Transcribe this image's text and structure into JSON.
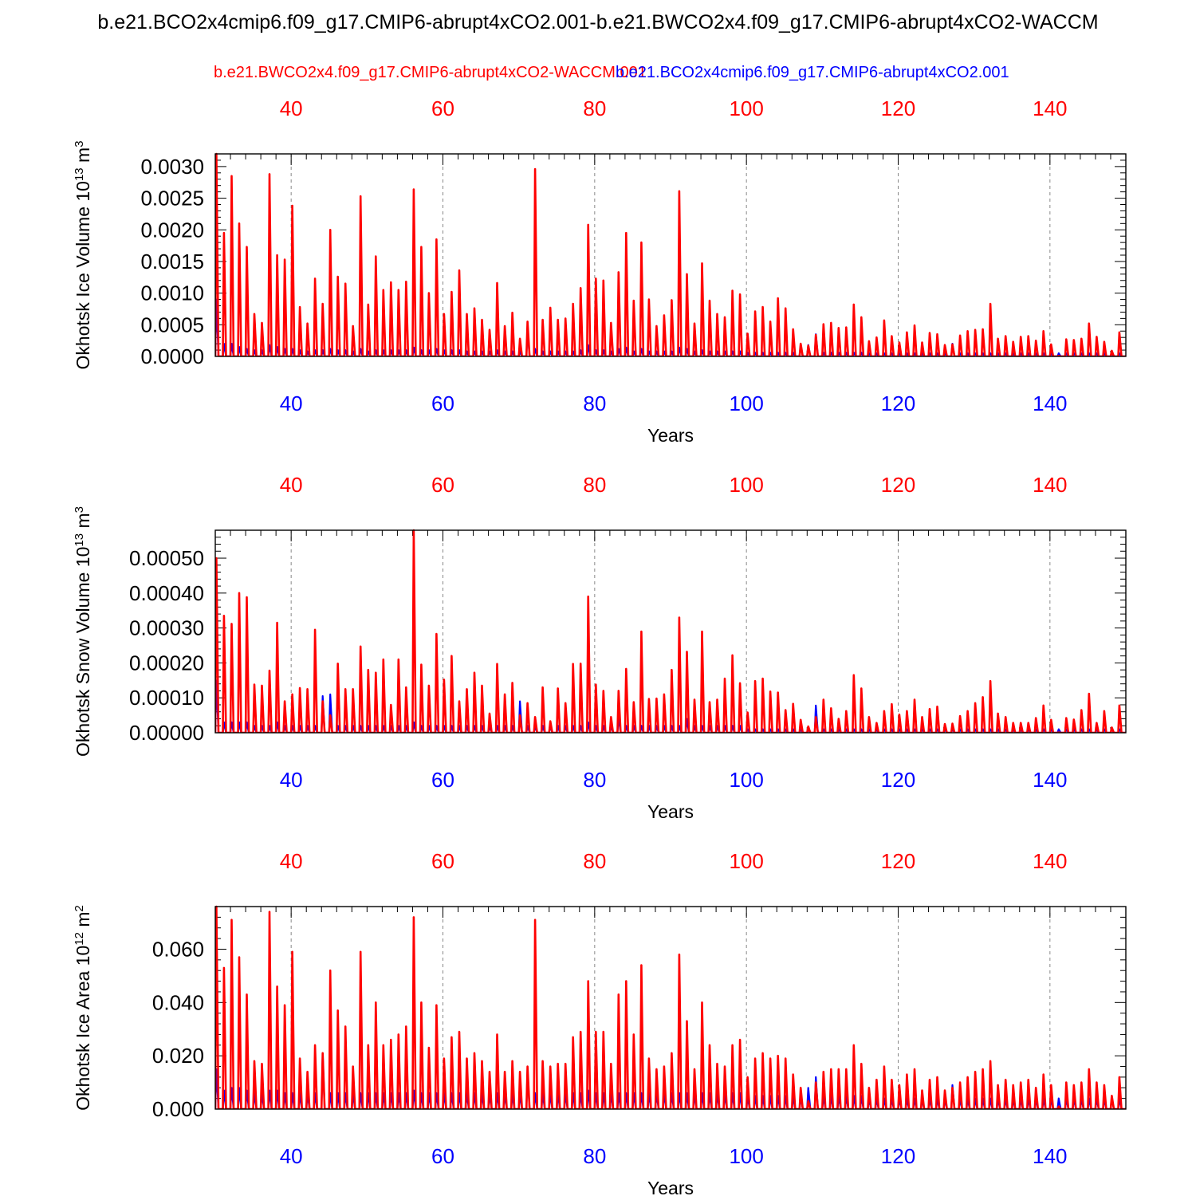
{
  "title": "b.e21.BCO2x4cmip6.f09_g17.CMIP6-abrupt4xCO2.001-b.e21.BWCO2x4.f09_g17.CMIP6-abrupt4xCO2-WACCM",
  "legend": {
    "red_label": "b.e21.BWCO2x4.f09_g17.CMIP6-abrupt4xCO2-WACCM.001",
    "blue_label": "b.e21.BCO2x4cmip6.f09_g17.CMIP6-abrupt4xCO2.001"
  },
  "colors": {
    "series_red": "#ff0000",
    "series_blue": "#0000ff",
    "axis": "#000000",
    "grid": "#888888"
  },
  "chart_data": [
    {
      "type": "line",
      "ylabel": "Okhotsk Ice Volume 10",
      "ylabel_exp": "13",
      "ylabel_unit": " m",
      "ylabel_unit_exp": "3",
      "xlabel": "Years",
      "xlim": [
        30,
        150
      ],
      "ylim": [
        0,
        0.0032
      ],
      "yticks": [
        0,
        0.0005,
        0.001,
        0.0015,
        0.002,
        0.0025,
        0.003
      ],
      "ytick_labels": [
        "0.0000",
        "0.0005",
        "0.0010",
        "0.0015",
        "0.0020",
        "0.0025",
        "0.0030"
      ],
      "xticks": [
        40,
        60,
        80,
        100,
        120,
        140
      ],
      "xtick_labels": [
        "40",
        "60",
        "80",
        "100",
        "120",
        "140"
      ],
      "series": [
        {
          "name": "b.e21.BWCO2x4.f09_g17.CMIP6-abrupt4xCO2-WACCM.001",
          "color": "#ff0000",
          "annual_peaks": [
            0.0032,
            0.00195,
            0.00285,
            0.0021,
            0.00173,
            0.00067,
            0.00053,
            0.00288,
            0.0016,
            0.00153,
            0.00238,
            0.00078,
            0.00052,
            0.00123,
            0.00083,
            0.002,
            0.00126,
            0.00115,
            0.00048,
            0.00253,
            0.00082,
            0.00158,
            0.00105,
            0.00117,
            0.00105,
            0.00118,
            0.00264,
            0.00173,
            0.001,
            0.00185,
            0.00067,
            0.00102,
            0.00136,
            0.00067,
            0.00076,
            0.00058,
            0.00042,
            0.00116,
            0.00048,
            0.00069,
            0.00028,
            0.00055,
            0.00296,
            0.00058,
            0.00077,
            0.00058,
            0.0006,
            0.00083,
            0.00108,
            0.00208,
            0.00123,
            0.0012,
            0.00053,
            0.00133,
            0.00195,
            0.00088,
            0.0018,
            0.0009,
            0.00048,
            0.00065,
            0.00089,
            0.00261,
            0.0013,
            0.00052,
            0.00147,
            0.00088,
            0.00067,
            0.00062,
            0.00104,
            0.00098,
            0.00036,
            0.00071,
            0.00078,
            0.00055,
            0.00092,
            0.00076,
            0.00043,
            0.0002,
            0.00017,
            0.00034,
            0.00051,
            0.00053,
            0.00045,
            0.00046,
            0.00082,
            0.00062,
            0.00024,
            0.0003,
            0.00057,
            0.00032,
            0.00022,
            0.00038,
            0.00049,
            0.00022,
            0.00037,
            0.00035,
            0.00018,
            0.00019,
            0.00033,
            0.0004,
            0.00042,
            0.00043,
            0.00083,
            0.00028,
            0.00032,
            0.00023,
            0.00031,
            0.00032,
            0.00025,
            0.0004,
            0.00019,
            1e-05,
            0.00027,
            0.00026,
            0.00028,
            0.00052,
            0.00031,
            0.00023,
            9e-05,
            0.00038
          ]
        },
        {
          "name": "b.e21.BCO2x4cmip6.f09_g17.CMIP6-abrupt4xCO2.001",
          "color": "#0000ff",
          "annual_peaks": [
            0.0009,
            0.0002,
            0.0002,
            0.00015,
            0.00012,
            0.0001,
            0.0001,
            0.00018,
            0.00015,
            0.00012,
            0.00012,
            0.0001,
            8e-05,
            0.0001,
            0.0001,
            0.00012,
            0.0001,
            0.0001,
            8e-05,
            0.00012,
            8e-05,
            0.0001,
            0.0001,
            0.0001,
            0.0001,
            0.0001,
            0.00014,
            0.0001,
            0.0001,
            0.00012,
            0.0001,
            0.0001,
            0.0001,
            8e-05,
            8e-05,
            8e-05,
            8e-05,
            0.0001,
            8e-05,
            8e-05,
            8e-05,
            0.00045,
            0.00012,
            8e-05,
            8e-05,
            8e-05,
            8e-05,
            8e-05,
            0.0001,
            0.00018,
            0.0001,
            0.0001,
            8e-05,
            0.00012,
            0.00014,
            8e-05,
            0.00012,
            8e-05,
            8e-05,
            8e-05,
            8e-05,
            0.00014,
            0.00012,
            8e-05,
            0.0001,
            8e-05,
            8e-05,
            8e-05,
            8e-05,
            8e-05,
            6e-05,
            6e-05,
            6e-05,
            6e-05,
            6e-05,
            6e-05,
            6e-05,
            0.00018,
            0.00018,
            0.00035,
            6e-05,
            6e-05,
            6e-05,
            6e-05,
            6e-05,
            6e-05,
            5e-05,
            5e-05,
            5e-05,
            5e-05,
            5e-05,
            5e-05,
            5e-05,
            5e-05,
            5e-05,
            5e-05,
            5e-05,
            0.0002,
            5e-05,
            5e-05,
            5e-05,
            5e-05,
            5e-05,
            5e-05,
            5e-05,
            5e-05,
            5e-05,
            5e-05,
            5e-05,
            5e-05,
            5e-05,
            5e-05,
            5e-05,
            5e-05,
            5e-05,
            5e-05,
            5e-05,
            5e-05,
            5e-05,
            5e-05
          ]
        }
      ]
    },
    {
      "type": "line",
      "ylabel": "Okhotsk Snow Volume 10",
      "ylabel_exp": "13",
      "ylabel_unit": " m",
      "ylabel_unit_exp": "3",
      "xlabel": "Years",
      "xlim": [
        30,
        150
      ],
      "ylim": [
        0,
        0.00058
      ],
      "yticks": [
        0,
        0.0001,
        0.0002,
        0.0003,
        0.0004,
        0.0005
      ],
      "ytick_labels": [
        "0.00000",
        "0.00010",
        "0.00020",
        "0.00030",
        "0.00040",
        "0.00050"
      ],
      "xticks": [
        40,
        60,
        80,
        100,
        120,
        140
      ],
      "xtick_labels": [
        "40",
        "60",
        "80",
        "100",
        "120",
        "140"
      ],
      "series": [
        {
          "name": "b.e21.BWCO2x4.f09_g17.CMIP6-abrupt4xCO2-WACCM.001",
          "color": "#ff0000",
          "annual_peaks": [
            0.0005,
            0.000335,
            0.000312,
            0.0004,
            0.000388,
            0.000138,
            0.000135,
            0.000178,
            0.000315,
            9e-05,
            0.00011,
            0.000128,
            0.000125,
            0.000295,
            9e-05,
            5e-05,
            0.000198,
            0.000125,
            0.000125,
            0.000247,
            0.00018,
            0.000172,
            0.00021,
            8e-05,
            0.00021,
            0.00013,
            0.00058,
            0.000195,
            0.000135,
            0.000283,
            0.000152,
            0.00022,
            9e-05,
            0.000125,
            0.000172,
            0.000135,
            5.5e-05,
            0.000197,
            0.00011,
            0.000143,
            5e-05,
            8.5e-05,
            4.5e-05,
            0.00013,
            3.3e-05,
            0.000127,
            8.5e-05,
            0.000197,
            0.000198,
            0.00039,
            0.000138,
            0.00012,
            4.5e-05,
            0.00012,
            0.000183,
            8.8e-05,
            0.00029,
            9.7e-05,
            9.8e-05,
            0.00011,
            0.00018,
            0.00033,
            0.000232,
            9.5e-05,
            0.00029,
            8.8e-05,
            9.5e-05,
            0.000155,
            0.000222,
            0.000142,
            5.8e-05,
            0.000148,
            0.000155,
            0.000118,
            0.000115,
            6.5e-05,
            8.3e-05,
            3.7e-05,
            1.8e-05,
            4.5e-05,
            9.5e-05,
            7e-05,
            4e-05,
            6.2e-05,
            0.000165,
            0.000127,
            4.5e-05,
            2.8e-05,
            6.2e-05,
            8.2e-05,
            5.2e-05,
            6.2e-05,
            9.5e-05,
            4.5e-05,
            6.8e-05,
            7.5e-05,
            2.5e-05,
            2.6e-05,
            4.8e-05,
            6.2e-05,
            8.5e-05,
            0.000102,
            0.000148,
            5.5e-05,
            4.5e-05,
            2.8e-05,
            2.8e-05,
            2.8e-05,
            4.2e-05,
            7.8e-05,
            3.7e-05,
            1e-06,
            4.2e-05,
            3.8e-05,
            6.5e-05,
            0.000112,
            2.8e-05,
            6.2e-05,
            1.5e-05,
            7.8e-05
          ]
        },
        {
          "name": "b.e21.BCO2x4cmip6.f09_g17.CMIP6-abrupt4xCO2.001",
          "color": "#0000ff",
          "annual_peaks": [
            0.00015,
            3e-05,
            3e-05,
            3e-05,
            3e-05,
            2e-05,
            2e-05,
            2e-05,
            3e-05,
            2e-05,
            2e-05,
            2e-05,
            2e-05,
            2e-05,
            0.000105,
            0.00011,
            2e-05,
            2e-05,
            2e-05,
            2e-05,
            2e-05,
            2e-05,
            2e-05,
            2e-05,
            2e-05,
            2e-05,
            3e-05,
            2e-05,
            2e-05,
            2e-05,
            2e-05,
            2e-05,
            2e-05,
            2e-05,
            2e-05,
            2e-05,
            2e-05,
            2e-05,
            2e-05,
            2e-05,
            9e-05,
            2e-05,
            2e-05,
            2e-05,
            2e-05,
            2e-05,
            2e-05,
            2e-05,
            2e-05,
            3e-05,
            2e-05,
            2e-05,
            2e-05,
            4.5e-05,
            2e-05,
            2e-05,
            2e-05,
            2e-05,
            2e-05,
            2e-05,
            2e-05,
            2e-05,
            4e-05,
            2e-05,
            2e-05,
            2e-05,
            2e-05,
            2e-05,
            2e-05,
            2e-05,
            1e-05,
            1e-05,
            1e-05,
            1e-05,
            1e-05,
            1e-05,
            1e-05,
            1e-05,
            1e-05,
            7.8e-05,
            1e-05,
            1e-05,
            1e-05,
            1e-05,
            1e-05,
            1e-05,
            1e-05,
            1e-05,
            1e-05,
            1e-05,
            1e-05,
            1e-05,
            1e-05,
            1e-05,
            1e-05,
            1e-05,
            1e-05,
            1e-05,
            1e-05,
            1e-05,
            1e-05,
            1e-05,
            1e-05,
            1e-05,
            1e-05,
            1e-05,
            1e-05,
            1e-05,
            1e-05,
            1e-05,
            1e-05,
            1e-05,
            1e-05,
            1e-05,
            1e-05,
            1e-05,
            1e-05,
            1e-05,
            1e-05,
            1e-05
          ]
        }
      ]
    },
    {
      "type": "line",
      "ylabel": "Okhotsk Ice Area 10",
      "ylabel_exp": "12",
      "ylabel_unit": " m",
      "ylabel_unit_exp": "2",
      "xlabel": "Years",
      "xlim": [
        30,
        150
      ],
      "ylim": [
        0,
        0.076
      ],
      "yticks": [
        0,
        0.02,
        0.04,
        0.06
      ],
      "ytick_labels": [
        "0.000",
        "0.020",
        "0.040",
        "0.060"
      ],
      "xticks": [
        40,
        60,
        80,
        100,
        120,
        140
      ],
      "xtick_labels": [
        "40",
        "60",
        "80",
        "100",
        "120",
        "140"
      ],
      "series": [
        {
          "name": "b.e21.BWCO2x4.f09_g17.CMIP6-abrupt4xCO2-WACCM.001",
          "color": "#ff0000",
          "annual_peaks": [
            0.076,
            0.053,
            0.071,
            0.057,
            0.043,
            0.018,
            0.017,
            0.074,
            0.046,
            0.039,
            0.059,
            0.019,
            0.014,
            0.024,
            0.021,
            0.052,
            0.037,
            0.031,
            0.016,
            0.059,
            0.024,
            0.04,
            0.024,
            0.026,
            0.028,
            0.031,
            0.072,
            0.04,
            0.023,
            0.039,
            0.019,
            0.027,
            0.029,
            0.019,
            0.021,
            0.018,
            0.014,
            0.028,
            0.014,
            0.018,
            0.014,
            0.016,
            0.071,
            0.018,
            0.016,
            0.017,
            0.017,
            0.027,
            0.029,
            0.048,
            0.029,
            0.029,
            0.017,
            0.043,
            0.048,
            0.028,
            0.054,
            0.019,
            0.015,
            0.016,
            0.021,
            0.058,
            0.033,
            0.015,
            0.04,
            0.024,
            0.017,
            0.016,
            0.024,
            0.026,
            0.012,
            0.019,
            0.021,
            0.019,
            0.02,
            0.019,
            0.013,
            0.008,
            0.003,
            0.01,
            0.014,
            0.015,
            0.015,
            0.015,
            0.024,
            0.017,
            0.008,
            0.011,
            0.016,
            0.011,
            0.009,
            0.013,
            0.015,
            0.007,
            0.011,
            0.012,
            0.007,
            0.008,
            0.01,
            0.012,
            0.014,
            0.015,
            0.018,
            0.009,
            0.011,
            0.009,
            0.01,
            0.011,
            0.008,
            0.013,
            0.009,
            0.001,
            0.01,
            0.009,
            0.01,
            0.015,
            0.01,
            0.009,
            0.005,
            0.012
          ]
        },
        {
          "name": "b.e21.BCO2x4cmip6.f09_g17.CMIP6-abrupt4xCO2.001",
          "color": "#0000ff",
          "annual_peaks": [
            0.015,
            0.007,
            0.008,
            0.008,
            0.007,
            0.006,
            0.006,
            0.007,
            0.007,
            0.006,
            0.006,
            0.006,
            0.006,
            0.006,
            0.021,
            0.006,
            0.006,
            0.006,
            0.006,
            0.006,
            0.006,
            0.006,
            0.006,
            0.006,
            0.006,
            0.006,
            0.007,
            0.006,
            0.006,
            0.006,
            0.006,
            0.006,
            0.006,
            0.006,
            0.006,
            0.006,
            0.006,
            0.006,
            0.006,
            0.006,
            0.006,
            0.015,
            0.006,
            0.006,
            0.006,
            0.006,
            0.006,
            0.006,
            0.006,
            0.007,
            0.006,
            0.006,
            0.006,
            0.006,
            0.006,
            0.006,
            0.006,
            0.006,
            0.006,
            0.006,
            0.006,
            0.006,
            0.006,
            0.006,
            0.006,
            0.006,
            0.006,
            0.006,
            0.006,
            0.006,
            0.005,
            0.005,
            0.005,
            0.005,
            0.005,
            0.005,
            0.005,
            0.005,
            0.008,
            0.012,
            0.005,
            0.005,
            0.005,
            0.005,
            0.005,
            0.005,
            0.004,
            0.004,
            0.004,
            0.004,
            0.004,
            0.004,
            0.004,
            0.004,
            0.004,
            0.004,
            0.004,
            0.009,
            0.004,
            0.004,
            0.004,
            0.004,
            0.004,
            0.004,
            0.004,
            0.004,
            0.004,
            0.004,
            0.004,
            0.004,
            0.004,
            0.004,
            0.004,
            0.004,
            0.004,
            0.004,
            0.004,
            0.004,
            0.004,
            0.004
          ]
        }
      ]
    }
  ]
}
